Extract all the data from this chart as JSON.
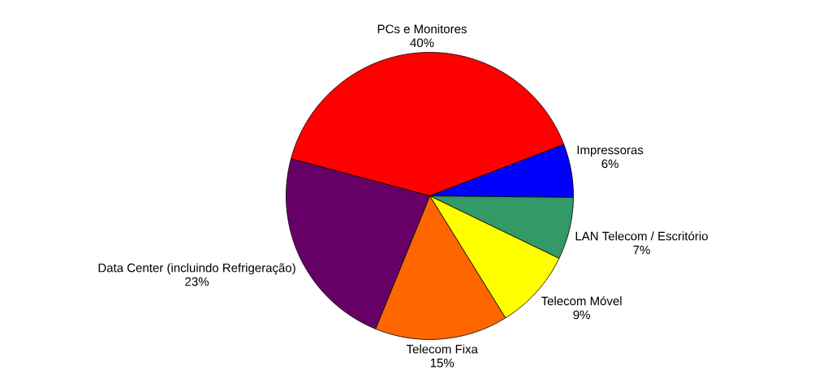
{
  "chart_data": {
    "type": "pie",
    "categories": [
      "PCs e Monitores",
      "Impressoras",
      "LAN Telecom / Escritório",
      "Telecom Móvel",
      "Telecom Fixa",
      "Data Center (incluindo Refrigeração)"
    ],
    "values": [
      40,
      6,
      7,
      9,
      15,
      23
    ],
    "value_labels": [
      "40%",
      "6%",
      "7%",
      "9%",
      "15%",
      "23%"
    ],
    "colors": [
      "#ff0000",
      "#0000ff",
      "#339966",
      "#ffff00",
      "#ff6600",
      "#660066"
    ]
  }
}
